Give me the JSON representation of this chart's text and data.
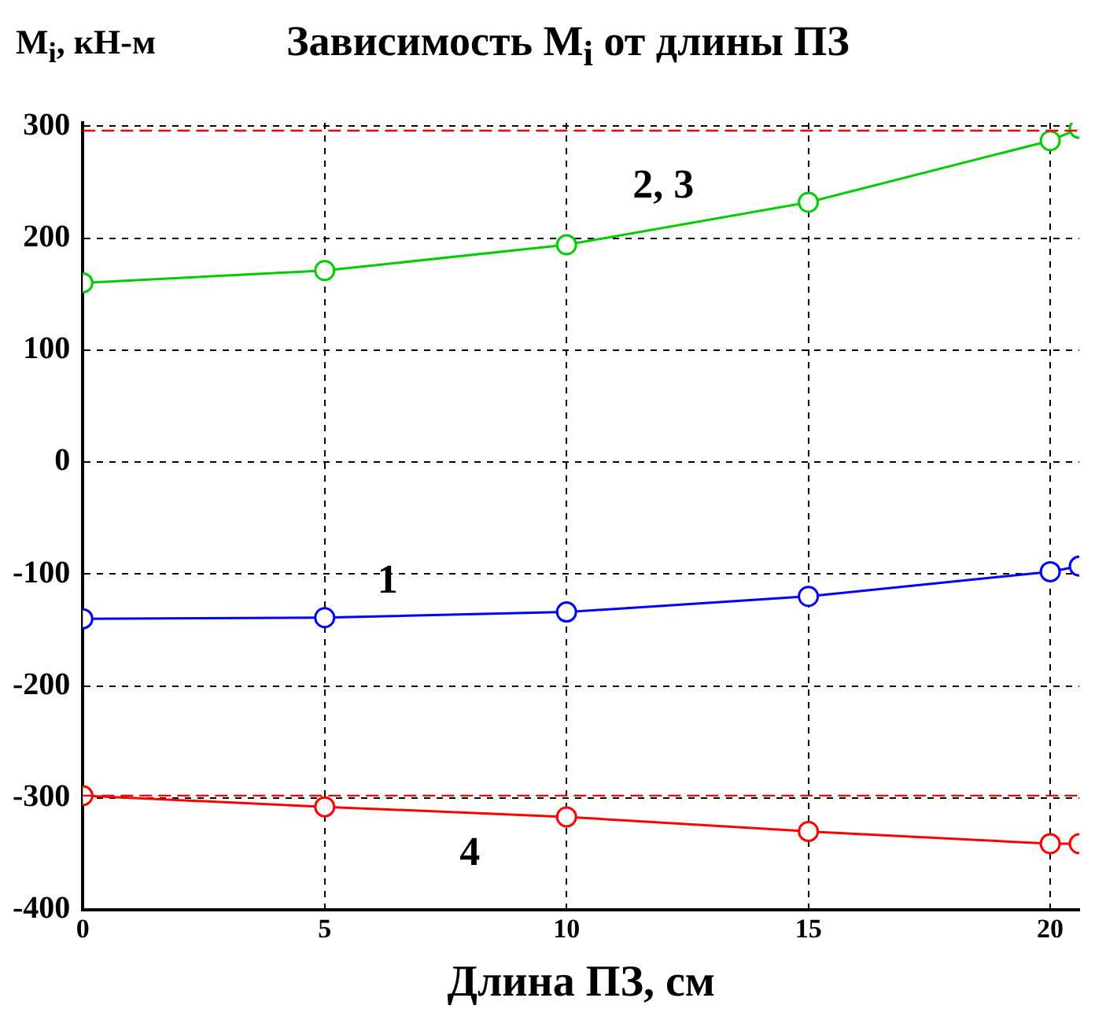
{
  "chart_data": {
    "type": "line",
    "title": "Зависимость M$_{i}$ от длины ПЗ",
    "xlabel": "Длина ПЗ, см",
    "ylabel": "M$_{i}$, кН-м",
    "x": [
      0,
      5,
      10,
      15,
      20,
      20.6
    ],
    "series": [
      {
        "color": "#00cc00",
        "values": [
          160,
          171,
          194,
          232,
          287,
          298
        ]
      },
      {
        "color": "#0000ff",
        "values": [
          -140,
          -139,
          -134,
          -120,
          -98,
          -93
        ]
      },
      {
        "color": "#ff0000",
        "values": [
          -298,
          -308,
          -317,
          -330,
          -341,
          -341
        ]
      }
    ],
    "xlim": [
      0,
      20.6
    ],
    "xticks": [
      0,
      5,
      10,
      15,
      20
    ],
    "ylim": [
      -400,
      303
    ],
    "yticks": [
      -400,
      -300,
      -200,
      -100,
      0,
      100,
      200,
      300
    ],
    "ref_lines": [
      {
        "axis": "y",
        "value": 296,
        "color": "#ff0000",
        "line_style": "dashed"
      },
      {
        "axis": "y",
        "value": -298,
        "color": "#ff0000",
        "line_style": "dashed"
      }
    ],
    "annotations": [
      {
        "text": "2, 3",
        "x": 12,
        "y": 209
      },
      {
        "text": "1",
        "x": 6.3,
        "y": -138
      },
      {
        "text": "4",
        "x": 8,
        "y": -314
      }
    ],
    "grid": true,
    "legend": false,
    "marker": "circle",
    "line_style": "solid"
  }
}
